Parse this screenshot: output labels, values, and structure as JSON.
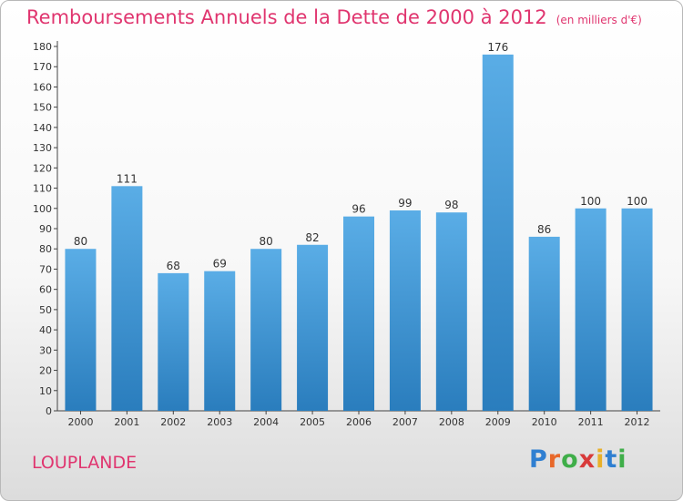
{
  "title": "Remboursements Annuels de la Dette de 2000 à 2012",
  "unit_note": "(en milliers d'€)",
  "commune": "LOUPLANDE",
  "logo": {
    "text": "Proxiti",
    "letters": [
      "P",
      "r",
      "o",
      "x",
      "i",
      "t",
      "i"
    ],
    "colors": [
      "#2f7fd1",
      "#e8682a",
      "#3fae49",
      "#d83a3a",
      "#e8b02a",
      "#2f7fd1",
      "#3fae49"
    ]
  },
  "colors": {
    "bar_light": "#5aade6",
    "bar_dark": "#2a7dbd",
    "title": "#e0356f"
  },
  "chart_data": {
    "type": "bar",
    "categories": [
      "2000",
      "2001",
      "2002",
      "2003",
      "2004",
      "2005",
      "2006",
      "2007",
      "2008",
      "2009",
      "2010",
      "2011",
      "2012"
    ],
    "values": [
      80,
      111,
      68,
      69,
      80,
      82,
      96,
      99,
      98,
      176,
      86,
      100,
      100
    ],
    "data_labels": [
      "80",
      "111",
      "68",
      "69",
      "80",
      "82",
      "96",
      "99",
      "98",
      "176",
      "86",
      "100",
      "100"
    ],
    "y_ticks": [
      "0",
      "10",
      "20",
      "30",
      "40",
      "50",
      "60",
      "70",
      "80",
      "90",
      "100",
      "110",
      "120",
      "130",
      "140",
      "150",
      "160",
      "170",
      "180"
    ],
    "ylim": [
      0,
      180
    ],
    "grid": false,
    "legend": "none"
  }
}
